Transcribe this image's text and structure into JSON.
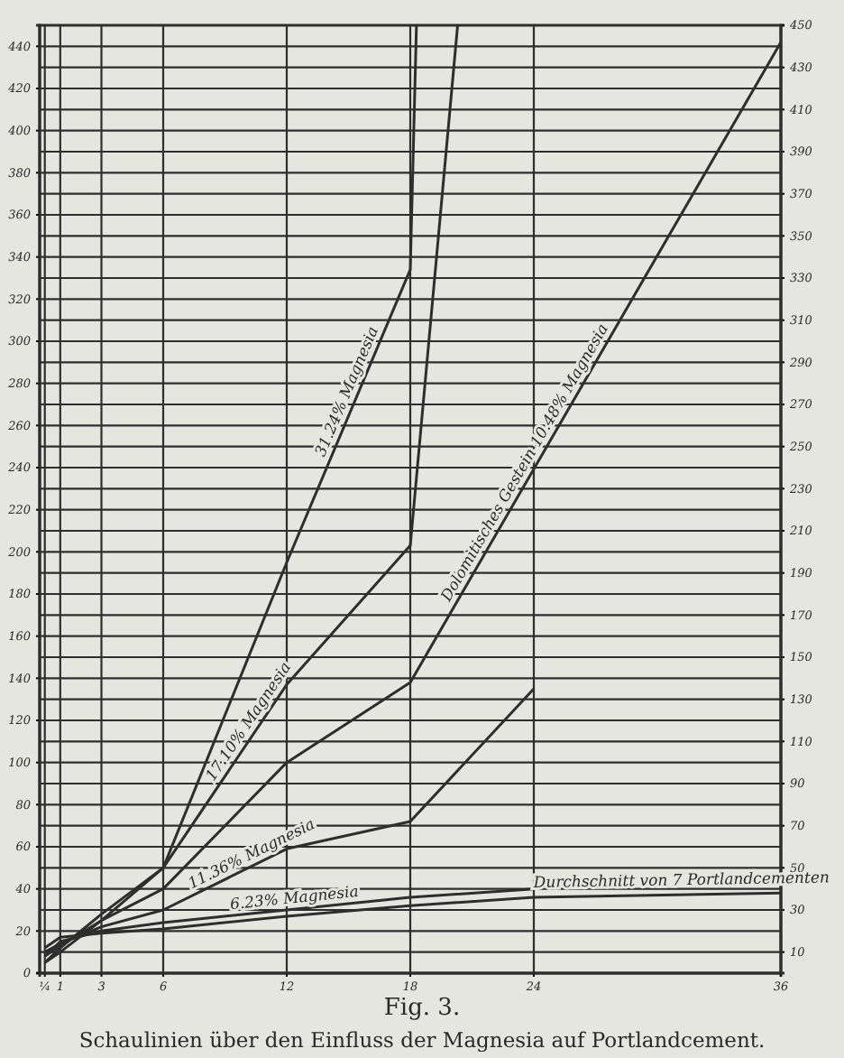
{
  "chart_data": {
    "type": "line",
    "title": "Fig. 3.",
    "subtitle": "Schaulinien über den Einfluss der Magnesia auf Portlandcement.",
    "xlim": [
      0,
      36
    ],
    "xticks": [
      {
        "value": 0.25,
        "label": "¼"
      },
      1,
      3,
      6,
      12,
      18,
      24,
      36
    ],
    "ylim": [
      0,
      450
    ],
    "yticks": [
      0,
      20,
      40,
      60,
      80,
      100,
      120,
      140,
      160,
      180,
      200,
      220,
      240,
      260,
      280,
      300,
      320,
      340,
      360,
      380,
      400,
      420,
      440
    ],
    "y2lim": [
      0,
      450
    ],
    "y2ticks": [
      10,
      30,
      50,
      70,
      90,
      110,
      130,
      150,
      170,
      190,
      210,
      230,
      250,
      270,
      290,
      310,
      330,
      350,
      370,
      390,
      410,
      430,
      450
    ],
    "grid": true,
    "line_style": "solid",
    "marker": "none",
    "series": [
      {
        "name": "31.24% Magnesia",
        "color": "#2e2e2e",
        "x": [
          0.25,
          1,
          3,
          6,
          12,
          18,
          18.3
        ],
        "values": [
          5,
          10,
          25,
          50,
          195,
          334,
          450
        ]
      },
      {
        "name": "17.10% Magnesia",
        "color": "#2e2e2e",
        "x": [
          0.25,
          1,
          3,
          6,
          12,
          18,
          20.3
        ],
        "values": [
          5,
          12,
          28,
          50,
          137,
          203,
          450
        ]
      },
      {
        "name": "Dolomitisches Gestein 10.48% Magnesia",
        "color": "#2e2e2e",
        "x": [
          0.25,
          1,
          3,
          6,
          12,
          18,
          36
        ],
        "values": [
          8,
          13,
          25,
          40,
          100,
          138,
          442
        ]
      },
      {
        "name": "11.36% Magnesia",
        "color": "#2e2e2e",
        "x": [
          0.25,
          1,
          3,
          6,
          12,
          18,
          24
        ],
        "values": [
          10,
          14,
          22,
          30,
          59,
          72,
          135
        ]
      },
      {
        "name": "6.23% Magnesia",
        "color": "#2e2e2e",
        "x": [
          0.25,
          1,
          3,
          6,
          12,
          18,
          24
        ],
        "values": [
          8,
          15,
          20,
          24,
          30,
          36,
          40
        ]
      },
      {
        "name": "Durchschnitt von 7 Portlandcementen",
        "color": "#2e2e2e",
        "x": [
          0.25,
          1,
          3,
          6,
          12,
          18,
          24,
          36
        ],
        "values": [
          12,
          17,
          19,
          21,
          27,
          32,
          36,
          38
        ]
      }
    ]
  }
}
